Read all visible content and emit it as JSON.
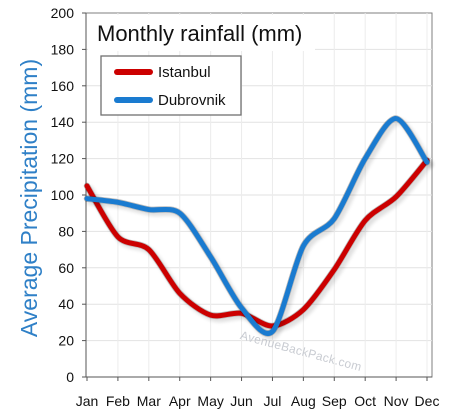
{
  "chart_data": {
    "type": "line",
    "title": "Monthly rainfall (mm)",
    "xlabel": "",
    "ylabel": "Average Precipitation (mm)",
    "categories": [
      "Jan",
      "Feb",
      "Mar",
      "Apr",
      "May",
      "Jun",
      "Jul",
      "Aug",
      "Sep",
      "Oct",
      "Nov",
      "Dec"
    ],
    "ylim": [
      0,
      200
    ],
    "yticks": [
      0,
      20,
      40,
      60,
      80,
      100,
      120,
      140,
      160,
      180,
      200
    ],
    "grid": true,
    "legend_position": "top-left",
    "watermark": "AvenueBackPack.com",
    "series": [
      {
        "name": "Istanbul",
        "color": "#cc0000",
        "values": [
          105,
          77,
          70,
          46,
          34,
          35,
          28,
          37,
          59,
          86,
          99,
          119
        ]
      },
      {
        "name": "Dubrovnik",
        "color": "#1a7bd0",
        "values": [
          98,
          96,
          92,
          90,
          66,
          38,
          25,
          72,
          87,
          120,
          142,
          118
        ]
      }
    ]
  }
}
